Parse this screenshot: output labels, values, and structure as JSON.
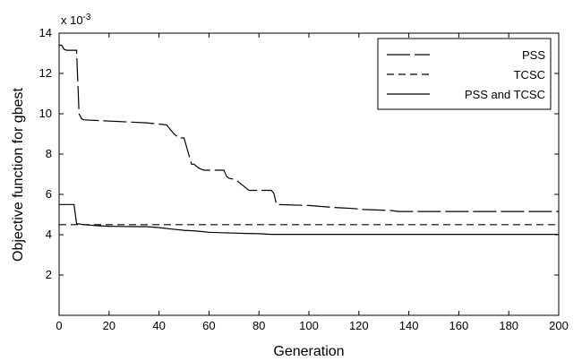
{
  "chart_data": {
    "type": "line",
    "xlabel": "Generation",
    "ylabel": "Objective function for gbest",
    "y_multiplier": {
      "base": "x 10",
      "exponent": "-3"
    },
    "xlim": [
      0,
      200
    ],
    "ylim": [
      0,
      14
    ],
    "x_ticks": [
      "0",
      "20",
      "40",
      "60",
      "80",
      "100",
      "120",
      "140",
      "160",
      "180",
      "200"
    ],
    "y_ticks": [
      "2",
      "4",
      "6",
      "8",
      "10",
      "12",
      "14"
    ],
    "grid": false,
    "legend_position": "top-right",
    "series": [
      {
        "name": "PSS",
        "line_style": "long-dash",
        "color": "#000000",
        "x": [
          0,
          1,
          2,
          3,
          7,
          8,
          9,
          10,
          18,
          35,
          43,
          46,
          48,
          50,
          53,
          54,
          56,
          57,
          58,
          66,
          67,
          68,
          70,
          71,
          75,
          76,
          85,
          86,
          87,
          100,
          110,
          118,
          122,
          133,
          136,
          160,
          200
        ],
        "y": [
          13.4,
          13.4,
          13.2,
          13.15,
          13.15,
          10.0,
          9.75,
          9.7,
          9.65,
          9.55,
          9.45,
          9.0,
          8.8,
          8.8,
          7.5,
          7.5,
          7.3,
          7.25,
          7.2,
          7.2,
          6.9,
          6.8,
          6.75,
          6.7,
          6.3,
          6.2,
          6.2,
          6.05,
          5.5,
          5.45,
          5.35,
          5.3,
          5.25,
          5.2,
          5.15,
          5.15,
          5.15
        ]
      },
      {
        "name": "TCSC",
        "line_style": "short-dash",
        "color": "#000000",
        "x": [
          0,
          200
        ],
        "y": [
          4.5,
          4.5
        ]
      },
      {
        "name": "PSS and TCSC",
        "line_style": "solid",
        "color": "#000000",
        "x": [
          0,
          6,
          7,
          10,
          15,
          20,
          30,
          35,
          40,
          45,
          50,
          55,
          60,
          65,
          70,
          75,
          80,
          85,
          200
        ],
        "y": [
          5.5,
          5.5,
          4.55,
          4.5,
          4.45,
          4.42,
          4.4,
          4.4,
          4.35,
          4.28,
          4.22,
          4.18,
          4.12,
          4.1,
          4.08,
          4.06,
          4.05,
          4.02,
          4.02
        ]
      }
    ]
  }
}
